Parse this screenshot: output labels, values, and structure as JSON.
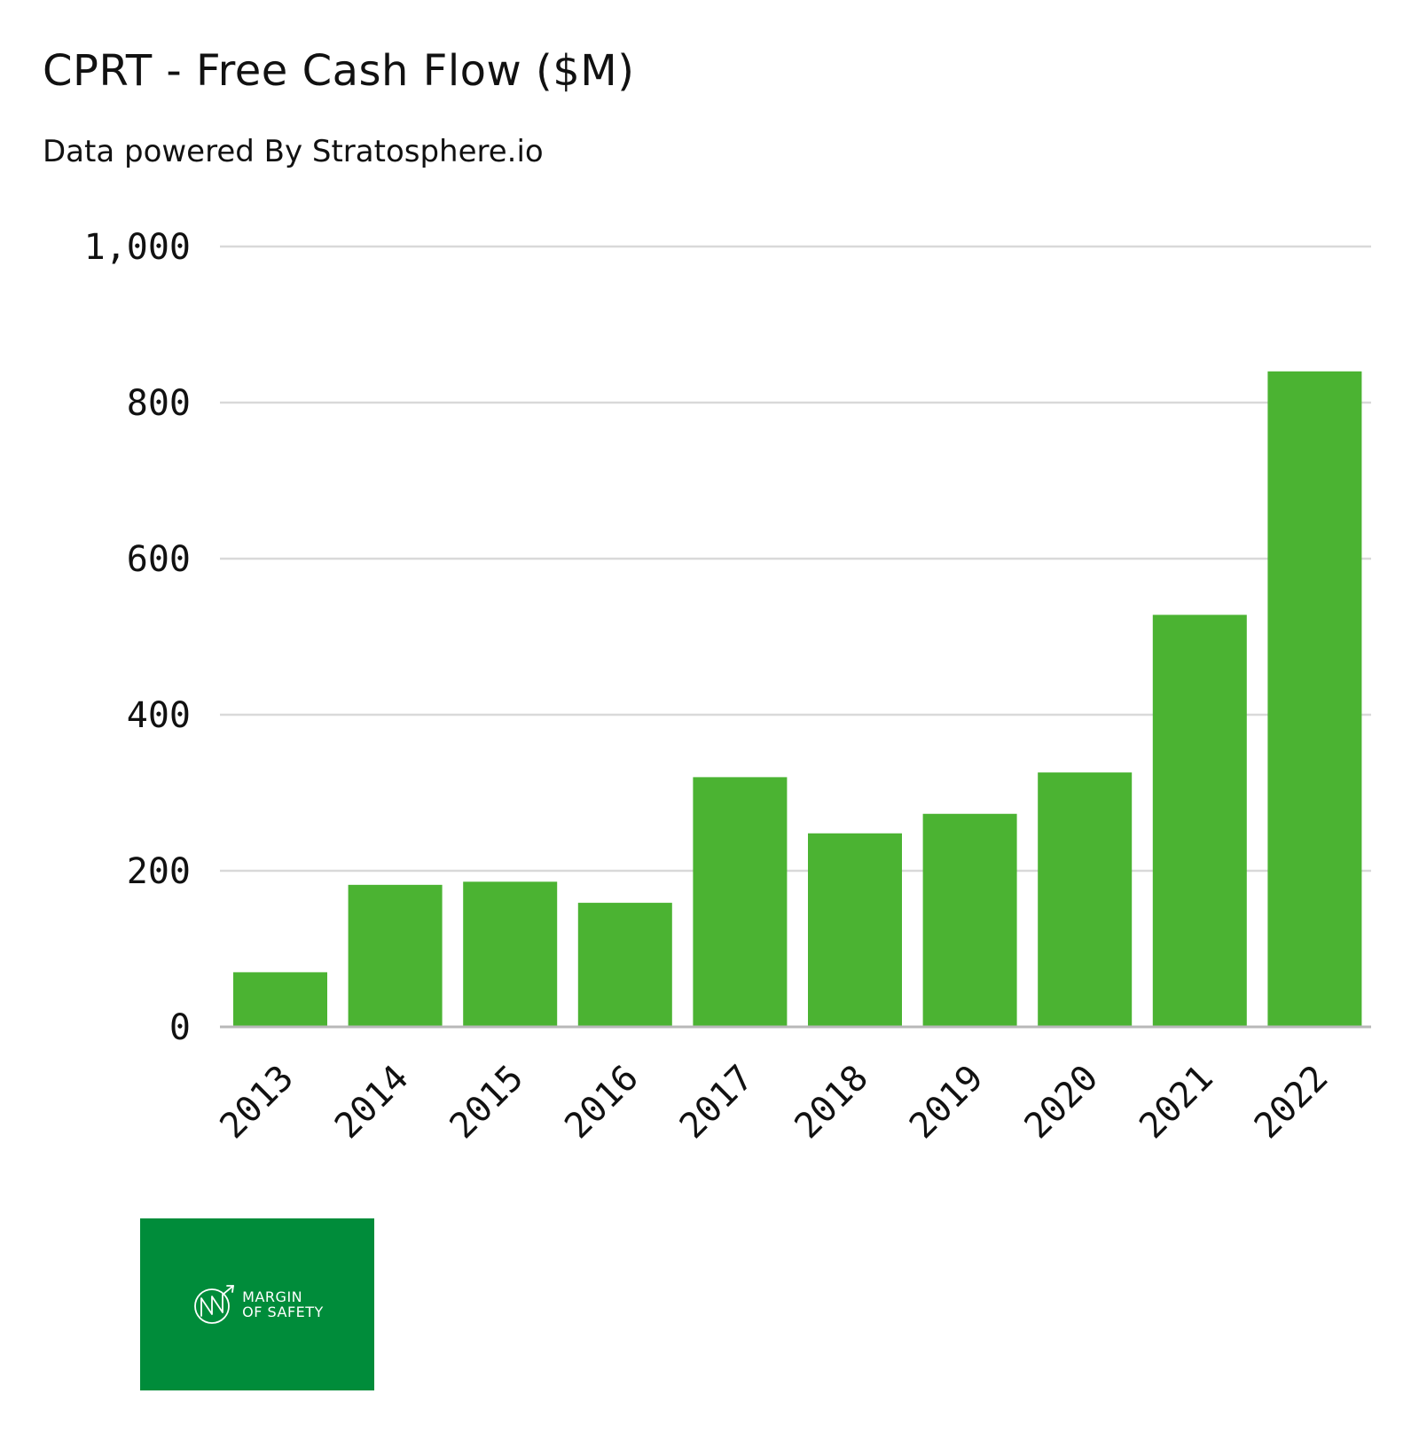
{
  "colors": {
    "bar": "#4bb332",
    "background": "#ffffff",
    "logo_background": "#008c3a",
    "logo_foreground": "#ffffff"
  },
  "chart_data": {
    "type": "bar",
    "title": "CPRT - Free Cash Flow ($M)",
    "subtitle": "Data powered By Stratosphere.io",
    "categories": [
      "2013",
      "2014",
      "2015",
      "2016",
      "2017",
      "2018",
      "2019",
      "2020",
      "2021",
      "2022"
    ],
    "values": [
      70,
      182,
      186,
      159,
      320,
      248,
      273,
      326,
      528,
      840
    ],
    "y_ticks": [
      0,
      200,
      400,
      600,
      800,
      1000
    ],
    "y_tick_labels": [
      "0",
      "200",
      "400",
      "600",
      "800",
      "1,000"
    ],
    "ylim": [
      0,
      1000
    ],
    "xlabel": "",
    "ylabel": "",
    "grid": true,
    "legend": "none"
  },
  "logo": {
    "line1": "MARGIN",
    "line2": "OF SAFETY"
  }
}
